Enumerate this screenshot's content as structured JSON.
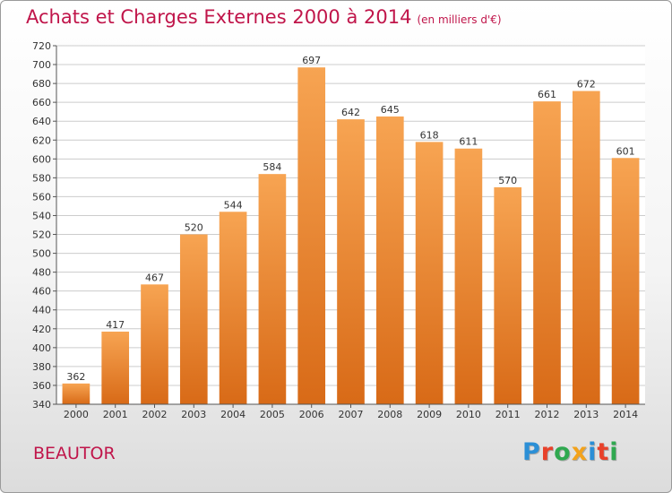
{
  "header": {
    "title": "Achats et Charges Externes 2000 à 2014",
    "unit_note": "(en milliers d'€)"
  },
  "footer": {
    "commune": "BEAUTOR",
    "logo_text": "Proxiti",
    "logo_letters": [
      {
        "char": "P",
        "color": "#2b8fd6"
      },
      {
        "char": "r",
        "color": "#e8412a"
      },
      {
        "char": "o",
        "color": "#2fa84f"
      },
      {
        "char": "x",
        "color": "#f3a21b"
      },
      {
        "char": "i",
        "color": "#2b8fd6"
      },
      {
        "char": "t",
        "color": "#e8412a"
      },
      {
        "char": "i",
        "color": "#2fa84f"
      }
    ]
  },
  "colors": {
    "title": "#c0154a",
    "bar_top": "#f7a452",
    "bar_bottom": "#d86a17",
    "grid": "#cccccc"
  },
  "chart_data": {
    "type": "bar",
    "categories": [
      "2000",
      "2001",
      "2002",
      "2003",
      "2004",
      "2005",
      "2006",
      "2007",
      "2008",
      "2009",
      "2010",
      "2011",
      "2012",
      "2013",
      "2014"
    ],
    "values": [
      362,
      417,
      467,
      520,
      544,
      584,
      697,
      642,
      645,
      618,
      611,
      570,
      661,
      672,
      601
    ],
    "ylim": [
      340,
      720
    ],
    "ytick_step": 20,
    "grid": true,
    "data_labels": true,
    "xlabel": "",
    "ylabel": ""
  }
}
